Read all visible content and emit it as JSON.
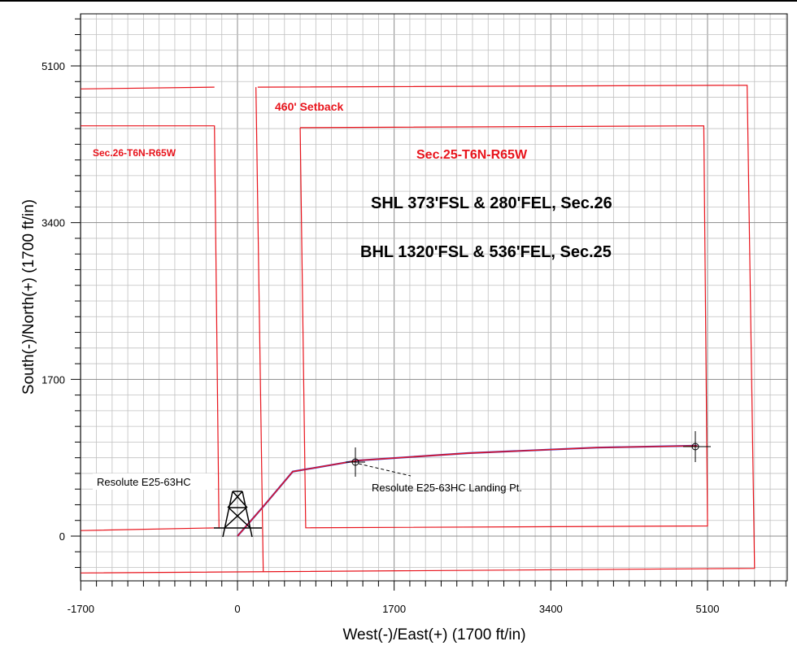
{
  "labels": {
    "section_26": "Sec.26-T6N-R65W",
    "section_25": "Sec.25-T6N-R65W",
    "setback": "460' Setback",
    "shl": "SHL 373'FSL & 280'FEL, Sec.26",
    "bhl": "BHL 1320'FSL & 536'FEL, Sec.25",
    "well_name": "Resolute E25-63HC",
    "landing_point": "Resolute E25-63HC Landing Pt."
  },
  "axes": {
    "x_label": "West(-)/East(+) (1700 ft/in)",
    "y_label": "South(-)/North(+) (1700 ft/in)",
    "x_ticks": [
      "-1700",
      "0",
      "1700",
      "3400",
      "5100"
    ],
    "y_ticks": [
      "0",
      "1700",
      "3400",
      "5100"
    ],
    "x_tick_values": [
      -1700,
      0,
      1700,
      3400,
      5100
    ],
    "y_tick_values": [
      0,
      1700,
      3400,
      5100
    ],
    "x_range": [
      -1700,
      6000
    ],
    "y_range": [
      -500,
      5700
    ]
  },
  "colors": {
    "boundary": "#e8141c",
    "wellpath": "#e8141c",
    "wellpath_design": "#3333cc",
    "grid_minor": "#c0c0c0",
    "grid_major": "#8c8c8c",
    "label_red": "#e8141c",
    "text": "#000000"
  },
  "chart_data": {
    "type": "diagram",
    "section_lines": [
      {
        "name": "Sec.26 west lease line",
        "points": [
          [
            -1700,
            4850
          ],
          [
            -250,
            4870
          ],
          [
            -250,
            4870
          ]
        ]
      },
      {
        "name": "Sec.26 setback",
        "points": [
          [
            -1700,
            4450
          ],
          [
            -250,
            4450
          ],
          [
            -200,
            90
          ],
          [
            -1700,
            60
          ]
        ]
      },
      {
        "name": "Sec.25 section line",
        "points": [
          [
            220,
            4870
          ],
          [
            5530,
            4890
          ],
          [
            5610,
            -350
          ],
          [
            -1700,
            -400
          ]
        ]
      },
      {
        "name": "Sec.25 setback",
        "points": [
          [
            680,
            4430
          ],
          [
            5060,
            4450
          ],
          [
            5100,
            110
          ],
          [
            740,
            90
          ],
          [
            680,
            4430
          ]
        ]
      },
      {
        "name": "Section divider",
        "points": [
          [
            200,
            4870
          ],
          [
            280,
            -390
          ]
        ]
      }
    ],
    "wellpath": [
      [
        0,
        0
      ],
      [
        280,
        320
      ],
      [
        600,
        700
      ],
      [
        1300,
        820
      ],
      [
        2500,
        900
      ],
      [
        3900,
        960
      ],
      [
        4990,
        980
      ]
    ],
    "surface_location": [
      0,
      0
    ],
    "landing_point": [
      1300,
      820
    ],
    "bottom_hole": [
      4990,
      980
    ]
  }
}
